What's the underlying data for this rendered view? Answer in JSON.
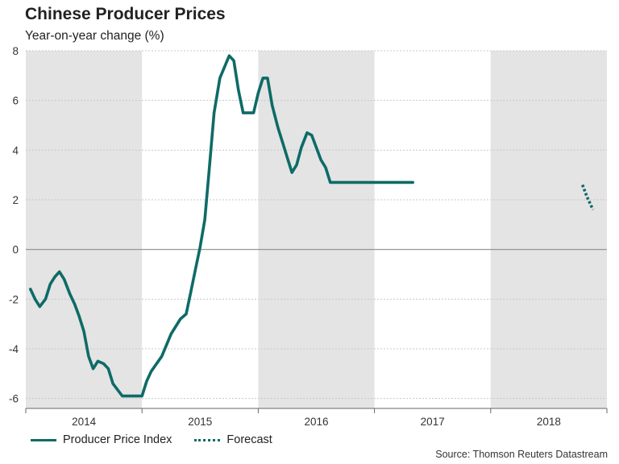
{
  "chart_data": {
    "type": "line",
    "title": "Chinese Producer Prices",
    "subtitle": "Year-on-year change (%)",
    "xlabel": "",
    "ylabel": "",
    "ylim": [
      -6.4,
      8
    ],
    "y_ticks": [
      8,
      6,
      4,
      2,
      0,
      -2,
      -4,
      -6
    ],
    "x_range": [
      2013.5,
      2018.5
    ],
    "year_labels": [
      "2014",
      "2015",
      "2016",
      "2017",
      "2018"
    ],
    "shaded_years": [
      "2014",
      "2016",
      "2018"
    ],
    "grid": true,
    "legend": "bottom-left",
    "series": [
      {
        "name": "Producer Price Index",
        "style": "solid",
        "x": [
          2013.54,
          2013.58,
          2013.62,
          2013.67,
          2013.71,
          2013.75,
          2013.79,
          2013.83,
          2013.88,
          2013.92,
          2013.96,
          2014.0,
          2014.04,
          2014.08,
          2014.12,
          2014.17,
          2014.21,
          2014.25,
          2014.33,
          2014.42,
          2014.46,
          2014.5,
          2014.54,
          2014.58,
          2014.67,
          2014.75,
          2014.83,
          2014.88,
          2014.92,
          2014.96,
          2015.0,
          2015.04,
          2015.08,
          2015.12,
          2015.17,
          2015.25,
          2015.29,
          2015.33,
          2015.37,
          2015.42,
          2015.46,
          2015.5,
          2015.54,
          2015.58,
          2015.62,
          2015.67,
          2015.71,
          2015.75,
          2015.79,
          2015.83,
          2015.87,
          2015.92,
          2015.96,
          2016.0,
          2016.04,
          2016.08,
          2016.12,
          2016.17,
          2016.21,
          2016.25,
          2016.29,
          2016.33,
          2016.38,
          2016.42,
          2016.46,
          2016.5,
          2016.54,
          2016.58,
          2016.62,
          2016.67,
          2016.71,
          2016.75,
          2016.79,
          2016.83
        ],
        "values": [
          -1.6,
          -2.0,
          -2.3,
          -2.0,
          -1.4,
          -1.1,
          -0.9,
          -1.2,
          -1.8,
          -2.2,
          -2.7,
          -3.3,
          -4.3,
          -4.8,
          -4.5,
          -4.6,
          -4.8,
          -5.4,
          -5.9,
          -5.9,
          -5.9,
          -5.9,
          -5.3,
          -4.9,
          -4.3,
          -3.4,
          -2.8,
          -2.6,
          -1.7,
          -0.8,
          0.1,
          1.2,
          3.3,
          5.5,
          6.9,
          7.8,
          7.6,
          6.4,
          5.5,
          5.5,
          5.5,
          6.3,
          6.9,
          6.9,
          5.8,
          4.9,
          4.3,
          3.7,
          3.1,
          3.4,
          4.1,
          4.7,
          4.6,
          4.1,
          3.6,
          3.3,
          2.7,
          2.7,
          2.7,
          2.7,
          2.7,
          2.7,
          2.7,
          2.7,
          2.7,
          2.7,
          2.7,
          2.7,
          2.7,
          2.7,
          2.7,
          2.7,
          2.7,
          2.7
        ]
      },
      {
        "name": "Forecast",
        "style": "dotted",
        "x": [
          2018.29,
          2018.33,
          2018.38
        ],
        "values": [
          2.6,
          2.1,
          1.6
        ]
      }
    ]
  },
  "source": "Source: Thomson Reuters Datastream",
  "colors": {
    "line": "#0e6b67",
    "shade": "#e4e4e4",
    "grid": "#c8c8c8",
    "zero": "#8c8c8c"
  }
}
